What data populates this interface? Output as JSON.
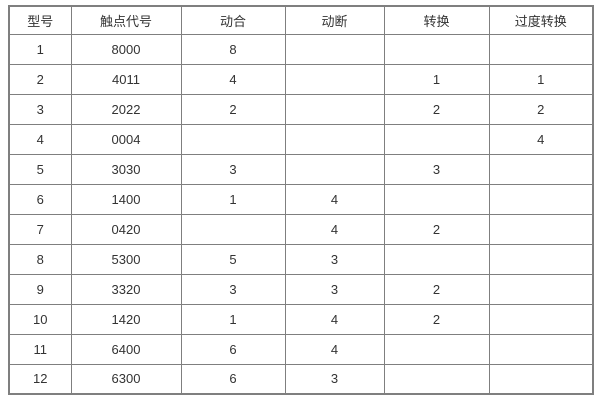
{
  "table": {
    "columns": [
      {
        "key": "model",
        "label": "型号"
      },
      {
        "key": "contact-code",
        "label": "触点代号"
      },
      {
        "key": "normally-open",
        "label": "动合"
      },
      {
        "key": "normally-closed",
        "label": "动断"
      },
      {
        "key": "changeover",
        "label": "转换"
      },
      {
        "key": "transition-changeover",
        "label": "过度转换"
      }
    ],
    "rows": [
      [
        "1",
        "8000",
        "8",
        "",
        "",
        ""
      ],
      [
        "2",
        "4011",
        "4",
        "",
        "1",
        "1"
      ],
      [
        "3",
        "2022",
        "2",
        "",
        "2",
        "2"
      ],
      [
        "4",
        "0004",
        "",
        "",
        "",
        "4"
      ],
      [
        "5",
        "3030",
        "3",
        "",
        "3",
        ""
      ],
      [
        "6",
        "1400",
        "1",
        "4",
        "",
        ""
      ],
      [
        "7",
        "0420",
        "",
        "4",
        "2",
        ""
      ],
      [
        "8",
        "5300",
        "5",
        "3",
        "",
        ""
      ],
      [
        "9",
        "3320",
        "3",
        "3",
        "2",
        ""
      ],
      [
        "10",
        "1420",
        "1",
        "4",
        "2",
        ""
      ],
      [
        "11",
        "6400",
        "6",
        "4",
        "",
        ""
      ],
      [
        "12",
        "6300",
        "6",
        "3",
        "",
        ""
      ]
    ]
  },
  "colors": {
    "border": "#7f7f7f",
    "text": "#333333",
    "background": "#ffffff"
  }
}
